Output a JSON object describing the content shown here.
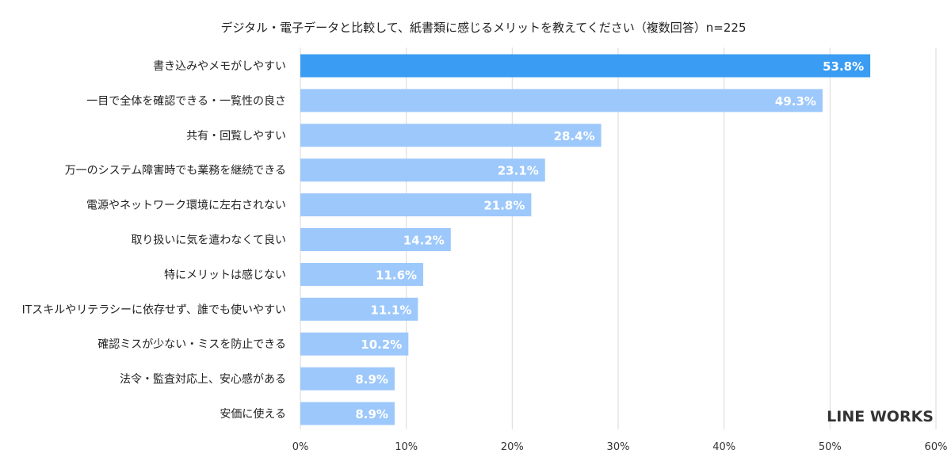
{
  "chart_data": {
    "type": "bar",
    "orientation": "horizontal",
    "title": "デジタル・電子データと比較して、紙書類に感じるメリットを教えてください（複数回答）n=225",
    "categories": [
      "書き込みやメモがしやすい",
      "一目で全体を確認できる・一覧性の良さ",
      "共有・回覧しやすい",
      "万一のシステム障害時でも業務を継続できる",
      "電源やネットワーク環境に左右されない",
      "取り扱いに気を遣わなくて良い",
      "特にメリットは感じない",
      "ITスキルやリテラシーに依存せず、誰でも使いやすい",
      "確認ミスが少ない・ミスを防止できる",
      "法令・監査対応上、安心感がある",
      "安価に使える"
    ],
    "values": [
      53.8,
      49.3,
      28.4,
      23.1,
      21.8,
      14.2,
      11.6,
      11.1,
      10.2,
      8.9,
      8.9
    ],
    "data_labels": [
      "53.8%",
      "49.3%",
      "28.4%",
      "23.1%",
      "21.8%",
      "14.2%",
      "11.6%",
      "11.1%",
      "10.2%",
      "8.9%",
      "8.9%"
    ],
    "xlim": [
      0,
      60
    ],
    "xticks": [
      0,
      10,
      20,
      30,
      40,
      50,
      60
    ],
    "xtick_labels": [
      "0%",
      "10%",
      "20%",
      "30%",
      "40%",
      "50%",
      "60%"
    ],
    "xlabel": "",
    "ylabel": "",
    "grid": true,
    "legend": "none",
    "colors": {
      "highlight": "#3a9cf2",
      "bar": "#9dc8fb",
      "grid": "#d9d9d9",
      "text": "#222222"
    }
  },
  "brand": {
    "logo_text": "LINE WORKS"
  }
}
